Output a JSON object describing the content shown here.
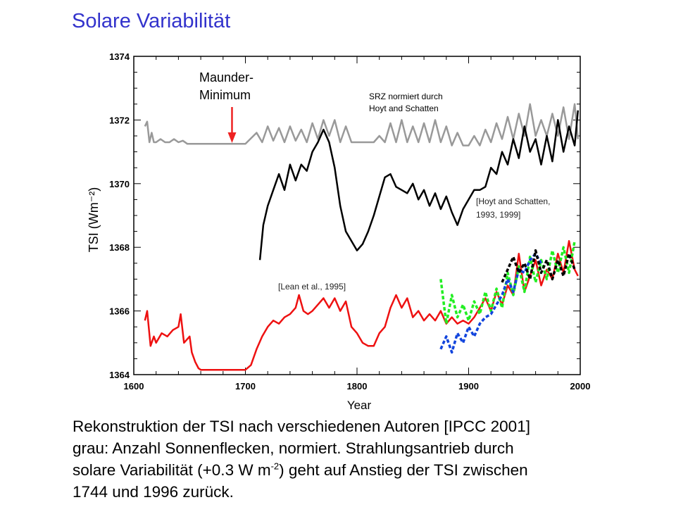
{
  "slide": {
    "title": "Solare Variabilität"
  },
  "caption": {
    "line1": "Rekonstruktion der TSI nach verschiedenen Autoren [IPCC 2001]",
    "line2": "grau: Anzahl Sonnenflecken, normiert. Strahlungsantrieb durch",
    "line3_a": "solare Variabilität (+0.3 W m",
    "line3_sup": "-2",
    "line3_b": ") geht auf Anstieg der TSI zwischen",
    "line4": "1744 und 1996 zurück."
  },
  "chart_data": {
    "type": "line",
    "xlabel": "Year",
    "ylabel": "TSI (Wm⁻²)",
    "xlim": [
      1600,
      2000
    ],
    "ylim": [
      1364,
      1374
    ],
    "x_ticks": [
      1600,
      1700,
      1800,
      1900,
      2000
    ],
    "y_ticks": [
      1364,
      1366,
      1368,
      1370,
      1372,
      1374
    ],
    "grid": false,
    "annotations": [
      {
        "text": "Maunder-",
        "text2": "Minimum",
        "arrow_year": 1688,
        "arrow_color": "#ee2222"
      },
      {
        "text": "SRZ normiert durch",
        "text2": "Hoyt and Schatten"
      },
      {
        "text": "[Hoyt and Schatten,",
        "text2": "1993, 1999]"
      },
      {
        "text": "[Lean et al., 1995]"
      }
    ],
    "series": [
      {
        "color": "#999999",
        "style": "solid",
        "x": [
          1610,
          1612,
          1614,
          1616,
          1618,
          1620,
          1624,
          1628,
          1632,
          1636,
          1640,
          1644,
          1648,
          1660,
          1680,
          1690,
          1700,
          1710,
          1715,
          1720,
          1725,
          1730,
          1735,
          1740,
          1745,
          1750,
          1755,
          1760,
          1765,
          1770,
          1775,
          1780,
          1785,
          1790,
          1795,
          1800,
          1805,
          1810,
          1815,
          1820,
          1825,
          1830,
          1835,
          1840,
          1845,
          1850,
          1855,
          1860,
          1865,
          1870,
          1875,
          1880,
          1885,
          1890,
          1895,
          1900,
          1905,
          1910,
          1915,
          1920,
          1925,
          1930,
          1935,
          1940,
          1945,
          1950,
          1955,
          1960,
          1965,
          1970,
          1975,
          1980,
          1985,
          1990,
          1995,
          1998
        ],
        "values": [
          1371.8,
          1371.95,
          1371.3,
          1371.6,
          1371.3,
          1371.3,
          1371.4,
          1371.3,
          1371.3,
          1371.4,
          1371.3,
          1371.35,
          1371.25,
          1371.25,
          1371.25,
          1371.25,
          1371.25,
          1371.6,
          1371.3,
          1371.8,
          1371.35,
          1371.75,
          1371.3,
          1371.8,
          1371.35,
          1371.7,
          1371.3,
          1371.9,
          1371.4,
          1372.0,
          1371.5,
          1372.0,
          1371.3,
          1371.8,
          1371.3,
          1371.3,
          1371.3,
          1371.3,
          1371.3,
          1371.5,
          1371.3,
          1371.9,
          1371.3,
          1372.0,
          1371.3,
          1371.8,
          1371.3,
          1371.9,
          1371.3,
          1372.0,
          1371.3,
          1371.8,
          1371.2,
          1371.6,
          1371.2,
          1371.2,
          1371.5,
          1371.2,
          1371.7,
          1371.3,
          1371.9,
          1371.4,
          1372.1,
          1371.4,
          1372.2,
          1371.5,
          1372.5,
          1371.5,
          1372.0,
          1371.5,
          1372.2,
          1371.5,
          1372.4,
          1371.4,
          1372.5,
          1371.4
        ]
      },
      {
        "color": "#000000",
        "style": "solid",
        "x": [
          1713,
          1716,
          1720,
          1725,
          1730,
          1735,
          1740,
          1745,
          1750,
          1755,
          1760,
          1765,
          1770,
          1775,
          1780,
          1785,
          1790,
          1795,
          1800,
          1805,
          1810,
          1815,
          1820,
          1825,
          1830,
          1835,
          1840,
          1845,
          1850,
          1855,
          1860,
          1865,
          1870,
          1875,
          1880,
          1885,
          1890,
          1895,
          1900,
          1905,
          1910,
          1915,
          1920,
          1925,
          1930,
          1935,
          1940,
          1945,
          1950,
          1955,
          1960,
          1965,
          1970,
          1975,
          1980,
          1985,
          1990,
          1995,
          1998
        ],
        "values": [
          1367.6,
          1368.7,
          1369.3,
          1369.8,
          1370.3,
          1369.8,
          1370.6,
          1370.1,
          1370.6,
          1370.4,
          1371.0,
          1371.3,
          1371.7,
          1371.3,
          1370.5,
          1369.3,
          1368.5,
          1368.2,
          1367.9,
          1368.1,
          1368.5,
          1369.0,
          1369.6,
          1370.2,
          1370.3,
          1369.9,
          1369.8,
          1369.7,
          1370.0,
          1369.5,
          1369.8,
          1369.3,
          1369.7,
          1369.2,
          1369.6,
          1369.1,
          1368.7,
          1369.2,
          1369.5,
          1369.8,
          1369.8,
          1369.9,
          1370.5,
          1370.3,
          1371.0,
          1370.6,
          1371.4,
          1370.8,
          1371.8,
          1371.0,
          1371.4,
          1370.6,
          1371.5,
          1370.7,
          1372.0,
          1371.0,
          1371.8,
          1371.2,
          1372.3
        ]
      },
      {
        "color": "#ee1111",
        "style": "solid",
        "x": [
          1610,
          1612,
          1615,
          1618,
          1620,
          1625,
          1630,
          1635,
          1640,
          1642,
          1645,
          1650,
          1652,
          1655,
          1658,
          1660,
          1665,
          1670,
          1680,
          1690,
          1700,
          1705,
          1710,
          1715,
          1720,
          1725,
          1730,
          1735,
          1740,
          1745,
          1748,
          1752,
          1756,
          1760,
          1765,
          1770,
          1775,
          1780,
          1785,
          1790,
          1795,
          1800,
          1805,
          1810,
          1815,
          1820,
          1825,
          1830,
          1835,
          1840,
          1845,
          1850,
          1855,
          1860,
          1865,
          1870,
          1875,
          1880,
          1885,
          1890,
          1895,
          1900,
          1905,
          1910,
          1915,
          1920,
          1925,
          1930,
          1935,
          1940,
          1945,
          1950,
          1955,
          1960,
          1965,
          1970,
          1975,
          1980,
          1985,
          1990,
          1995,
          1998
        ],
        "values": [
          1365.7,
          1366.0,
          1364.9,
          1365.2,
          1365.0,
          1365.3,
          1365.2,
          1365.4,
          1365.5,
          1365.9,
          1365.0,
          1365.2,
          1364.7,
          1364.4,
          1364.2,
          1364.15,
          1364.15,
          1364.15,
          1364.15,
          1364.15,
          1364.15,
          1364.3,
          1364.8,
          1365.2,
          1365.5,
          1365.7,
          1365.6,
          1365.8,
          1365.9,
          1366.1,
          1366.5,
          1366.0,
          1365.9,
          1366.0,
          1366.2,
          1366.4,
          1366.1,
          1366.4,
          1366.0,
          1366.3,
          1365.5,
          1365.3,
          1365.0,
          1364.9,
          1364.9,
          1365.3,
          1365.5,
          1366.1,
          1366.5,
          1366.1,
          1366.4,
          1365.8,
          1366.0,
          1365.7,
          1365.9,
          1365.7,
          1366.0,
          1365.6,
          1365.8,
          1365.6,
          1365.7,
          1365.6,
          1365.8,
          1366.1,
          1366.4,
          1366.0,
          1366.6,
          1366.2,
          1366.8,
          1366.5,
          1367.8,
          1366.6,
          1367.1,
          1367.6,
          1366.8,
          1367.3,
          1367.0,
          1367.8,
          1367.2,
          1368.2,
          1367.3,
          1367.1
        ]
      },
      {
        "color": "#22ee22",
        "style": "dashed",
        "x": [
          1875,
          1880,
          1885,
          1890,
          1895,
          1900,
          1905,
          1910,
          1915,
          1920,
          1925,
          1930,
          1935,
          1940,
          1945,
          1950,
          1955,
          1960,
          1965,
          1970,
          1975,
          1980,
          1985,
          1990,
          1995
        ],
        "values": [
          1367.0,
          1365.6,
          1366.5,
          1365.8,
          1366.2,
          1365.7,
          1366.3,
          1365.9,
          1366.6,
          1366.0,
          1366.7,
          1366.1,
          1367.2,
          1366.5,
          1367.4,
          1366.6,
          1367.7,
          1366.9,
          1367.6,
          1367.0,
          1367.9,
          1367.2,
          1368.0,
          1367.2,
          1368.2
        ]
      },
      {
        "color": "#1144dd",
        "style": "dashed",
        "x": [
          1875,
          1880,
          1885,
          1890,
          1895,
          1900,
          1905,
          1910,
          1915,
          1920,
          1925,
          1930,
          1935,
          1940,
          1945,
          1950,
          1955,
          1960,
          1965
        ],
        "values": [
          1364.8,
          1365.2,
          1364.7,
          1365.3,
          1365.0,
          1365.5,
          1365.2,
          1365.6,
          1365.8,
          1365.9,
          1366.2,
          1366.5,
          1367.0,
          1366.6,
          1367.3,
          1367.2,
          1367.6,
          1367.8,
          1367.5
        ]
      },
      {
        "color": "#000000",
        "style": "dashed",
        "x": [
          1930,
          1935,
          1940,
          1945,
          1950,
          1955,
          1960,
          1965,
          1970,
          1975,
          1980,
          1985,
          1990,
          1995
        ],
        "values": [
          1366.9,
          1367.3,
          1367.7,
          1367.2,
          1367.5,
          1367.0,
          1367.9,
          1367.2,
          1367.6,
          1367.0,
          1367.6,
          1367.1,
          1367.8,
          1367.3
        ]
      }
    ]
  }
}
